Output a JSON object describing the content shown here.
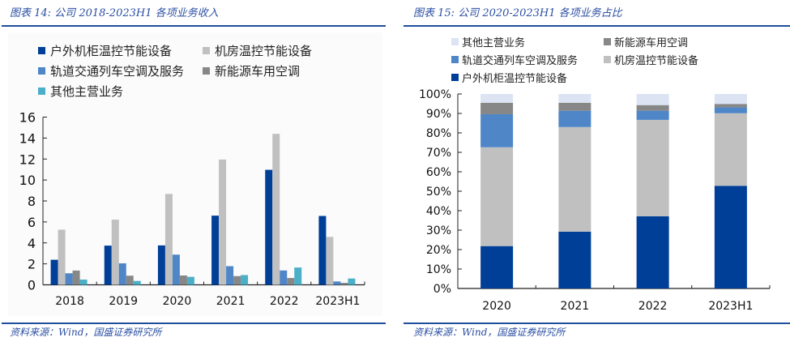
{
  "chart_data": [
    {
      "type": "bar",
      "title": "图表 14: 公司 2018-2023H1 各项业务收入",
      "source": "资料来源：Wind，国盛证券研究所",
      "xlabel": "",
      "ylabel": "",
      "categories": [
        "2018",
        "2019",
        "2020",
        "2021",
        "2022",
        "2023H1"
      ],
      "ylim": [
        0,
        16
      ],
      "yticks": [
        "0",
        "2",
        "4",
        "6",
        "8",
        "10",
        "12",
        "14",
        "16"
      ],
      "grid": false,
      "legend_position": "top",
      "series": [
        {
          "name": "户外机柜温控节能设备",
          "color": "#003f98",
          "values": [
            2.39,
            3.74,
            3.76,
            6.6,
            10.97,
            6.57
          ]
        },
        {
          "name": "机房温控节能设备",
          "color": "#c0c0c0",
          "values": [
            5.26,
            6.22,
            8.67,
            11.95,
            14.4,
            4.57
          ]
        },
        {
          "name": "轨道交通列车空调及服务",
          "color": "#4e86c8",
          "values": [
            1.1,
            2.05,
            2.88,
            1.78,
            1.37,
            0.32
          ]
        },
        {
          "name": "新能源车用空调",
          "color": "#878787",
          "values": [
            1.36,
            0.87,
            0.89,
            0.83,
            0.65,
            0.19
          ]
        },
        {
          "name": "其他主营业务",
          "color": "#4bafc8",
          "values": [
            0.5,
            0.37,
            0.76,
            0.93,
            1.65,
            0.6
          ]
        }
      ],
      "legend_order": [
        0,
        1,
        2,
        3,
        4
      ]
    },
    {
      "type": "bar",
      "stacked": true,
      "title": "图表 15: 公司 2020-2023H1 各项业务占比",
      "source": "资料来源：Wind，国盛证券研究所",
      "xlabel": "",
      "ylabel": "",
      "categories": [
        "2020",
        "2021",
        "2022",
        "2023H1"
      ],
      "ylim": [
        0,
        100
      ],
      "yticks": [
        "0%",
        "10%",
        "20%",
        "30%",
        "40%",
        "50%",
        "60%",
        "70%",
        "80%",
        "90%",
        "100%"
      ],
      "grid": false,
      "legend_position": "top",
      "series": [
        {
          "name": "户外机柜温控节能设备",
          "color": "#003f98",
          "values": [
            21.8,
            29.2,
            37.1,
            52.8
          ]
        },
        {
          "name": "机房温控节能设备",
          "color": "#c0c0c0",
          "values": [
            50.8,
            53.8,
            49.6,
            37.3
          ]
        },
        {
          "name": "轨道交通列车空调及服务",
          "color": "#4e86c8",
          "values": [
            17.0,
            8.4,
            4.7,
            3.0
          ]
        },
        {
          "name": "新能源车用空调",
          "color": "#878787",
          "values": [
            5.9,
            4.1,
            2.9,
            1.8
          ]
        },
        {
          "name": "其他主营业务",
          "color": "#dce4f4",
          "values": [
            4.5,
            4.5,
            5.7,
            5.1
          ]
        }
      ],
      "legend_order": [
        4,
        3,
        2,
        1,
        0
      ]
    }
  ]
}
